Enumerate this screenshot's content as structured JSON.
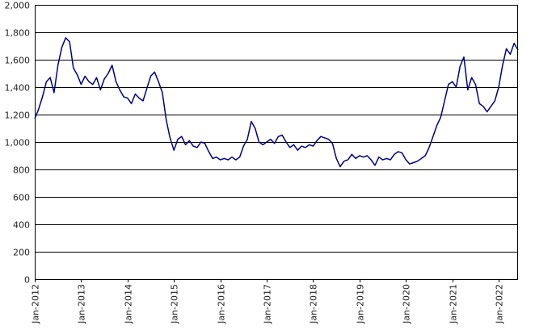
{
  "chart_data": {
    "type": "line",
    "title": "",
    "xlabel": "",
    "ylabel": "",
    "ylim": [
      0,
      2000
    ],
    "xlim": [
      "2012-01",
      "2022-06"
    ],
    "grid": "horizontal",
    "legend": "none",
    "y_ticks": [
      "0",
      "200",
      "400",
      "600",
      "800",
      "1,000",
      "1,200",
      "1,400",
      "1,600",
      "1,800",
      "2,000"
    ],
    "x_ticks": [
      "Jan-2012",
      "Jan-2013",
      "Jan-2014",
      "Jan-2015",
      "Jan-2016",
      "Jan-2017",
      "Jan-2018",
      "Jan-2019",
      "Jan-2020",
      "Jan-2021",
      "Jan-2022"
    ],
    "series": [
      {
        "color": "#000080",
        "points": [
          [
            "2012-01",
            1170
          ],
          [
            "2012-02",
            1240
          ],
          [
            "2012-03",
            1330
          ],
          [
            "2012-04",
            1440
          ],
          [
            "2012-05",
            1470
          ],
          [
            "2012-06",
            1360
          ],
          [
            "2012-07",
            1560
          ],
          [
            "2012-08",
            1690
          ],
          [
            "2012-09",
            1760
          ],
          [
            "2012-10",
            1730
          ],
          [
            "2012-11",
            1540
          ],
          [
            "2012-12",
            1490
          ],
          [
            "2013-01",
            1420
          ],
          [
            "2013-02",
            1480
          ],
          [
            "2013-03",
            1440
          ],
          [
            "2013-04",
            1420
          ],
          [
            "2013-05",
            1470
          ],
          [
            "2013-06",
            1380
          ],
          [
            "2013-07",
            1460
          ],
          [
            "2013-08",
            1500
          ],
          [
            "2013-09",
            1560
          ],
          [
            "2013-10",
            1440
          ],
          [
            "2013-11",
            1380
          ],
          [
            "2013-12",
            1330
          ],
          [
            "2014-01",
            1320
          ],
          [
            "2014-02",
            1280
          ],
          [
            "2014-03",
            1350
          ],
          [
            "2014-04",
            1320
          ],
          [
            "2014-05",
            1300
          ],
          [
            "2014-06",
            1390
          ],
          [
            "2014-07",
            1480
          ],
          [
            "2014-08",
            1510
          ],
          [
            "2014-09",
            1440
          ],
          [
            "2014-10",
            1360
          ],
          [
            "2014-11",
            1160
          ],
          [
            "2014-12",
            1030
          ],
          [
            "2015-01",
            940
          ],
          [
            "2015-02",
            1020
          ],
          [
            "2015-03",
            1040
          ],
          [
            "2015-04",
            980
          ],
          [
            "2015-05",
            1010
          ],
          [
            "2015-06",
            970
          ],
          [
            "2015-07",
            960
          ],
          [
            "2015-08",
            1000
          ],
          [
            "2015-09",
            990
          ],
          [
            "2015-10",
            930
          ],
          [
            "2015-11",
            880
          ],
          [
            "2015-12",
            890
          ],
          [
            "2016-01",
            870
          ],
          [
            "2016-02",
            880
          ],
          [
            "2016-03",
            870
          ],
          [
            "2016-04",
            890
          ],
          [
            "2016-05",
            870
          ],
          [
            "2016-06",
            890
          ],
          [
            "2016-07",
            970
          ],
          [
            "2016-08",
            1020
          ],
          [
            "2016-09",
            1150
          ],
          [
            "2016-10",
            1100
          ],
          [
            "2016-11",
            1000
          ],
          [
            "2016-12",
            980
          ],
          [
            "2017-01",
            1000
          ],
          [
            "2017-02",
            1020
          ],
          [
            "2017-03",
            990
          ],
          [
            "2017-04",
            1040
          ],
          [
            "2017-05",
            1050
          ],
          [
            "2017-06",
            1000
          ],
          [
            "2017-07",
            960
          ],
          [
            "2017-08",
            980
          ],
          [
            "2017-09",
            940
          ],
          [
            "2017-10",
            970
          ],
          [
            "2017-11",
            960
          ],
          [
            "2017-12",
            980
          ],
          [
            "2018-01",
            970
          ],
          [
            "2018-02",
            1010
          ],
          [
            "2018-03",
            1040
          ],
          [
            "2018-04",
            1030
          ],
          [
            "2018-05",
            1020
          ],
          [
            "2018-06",
            990
          ],
          [
            "2018-07",
            880
          ],
          [
            "2018-08",
            820
          ],
          [
            "2018-09",
            860
          ],
          [
            "2018-10",
            870
          ],
          [
            "2018-11",
            910
          ],
          [
            "2018-12",
            880
          ],
          [
            "2019-01",
            900
          ],
          [
            "2019-02",
            890
          ],
          [
            "2019-03",
            900
          ],
          [
            "2019-04",
            870
          ],
          [
            "2019-05",
            830
          ],
          [
            "2019-06",
            890
          ],
          [
            "2019-07",
            870
          ],
          [
            "2019-08",
            880
          ],
          [
            "2019-09",
            870
          ],
          [
            "2019-10",
            910
          ],
          [
            "2019-11",
            930
          ],
          [
            "2019-12",
            920
          ],
          [
            "2020-01",
            870
          ],
          [
            "2020-02",
            840
          ],
          [
            "2020-03",
            850
          ],
          [
            "2020-04",
            860
          ],
          [
            "2020-05",
            880
          ],
          [
            "2020-06",
            900
          ],
          [
            "2020-07",
            960
          ],
          [
            "2020-08",
            1040
          ],
          [
            "2020-09",
            1120
          ],
          [
            "2020-10",
            1180
          ],
          [
            "2020-11",
            1300
          ],
          [
            "2020-12",
            1420
          ],
          [
            "2021-01",
            1440
          ],
          [
            "2021-02",
            1400
          ],
          [
            "2021-03",
            1550
          ],
          [
            "2021-04",
            1620
          ],
          [
            "2021-05",
            1380
          ],
          [
            "2021-06",
            1470
          ],
          [
            "2021-07",
            1420
          ],
          [
            "2021-08",
            1280
          ],
          [
            "2021-09",
            1260
          ],
          [
            "2021-10",
            1220
          ],
          [
            "2021-11",
            1260
          ],
          [
            "2021-12",
            1300
          ],
          [
            "2022-01",
            1400
          ],
          [
            "2022-02",
            1560
          ],
          [
            "2022-03",
            1680
          ],
          [
            "2022-04",
            1640
          ],
          [
            "2022-05",
            1720
          ],
          [
            "2022-06",
            1670
          ]
        ]
      }
    ]
  }
}
